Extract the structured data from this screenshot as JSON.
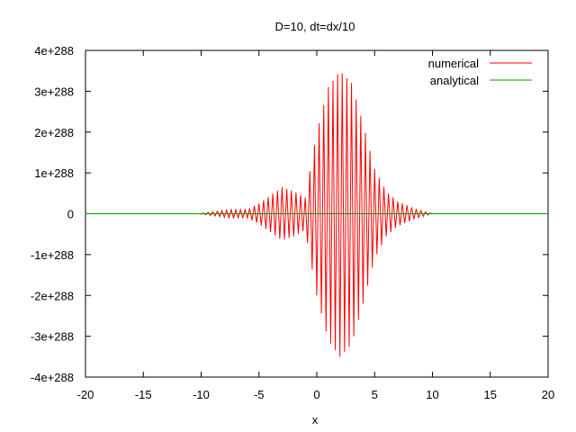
{
  "chart_data": {
    "type": "line",
    "title": "D=10, dt=dx/10",
    "xlabel": "x",
    "ylabel": "",
    "xlim": [
      -20,
      20
    ],
    "ylim": [
      -4e+288,
      4e+288
    ],
    "xticks": [
      -20,
      -15,
      -10,
      -5,
      0,
      5,
      10,
      15,
      20
    ],
    "xtick_labels": [
      "-20",
      "-15",
      "-10",
      "-5",
      "0",
      "5",
      "10",
      "15",
      "20"
    ],
    "yticks": [
      -4e+288,
      -3e+288,
      -2e+288,
      -1e+288,
      0,
      1e+288,
      2e+288,
      3e+288,
      4e+288
    ],
    "ytick_labels": [
      "-4e+288",
      "-3e+288",
      "-2e+288",
      "-1e+288",
      "0",
      "1e+288",
      "2e+288",
      "3e+288",
      "4e+288"
    ],
    "grid": false,
    "legend_position": "top-right",
    "series": [
      {
        "name": "numerical",
        "color": "#ff0000",
        "kind": "oscillating-envelope",
        "x_range": [
          -10.2,
          10
        ],
        "oscillation_period": 0.4,
        "envelope_points": [
          {
            "x": -10.2,
            "amp": 0
          },
          {
            "x": -9.0,
            "amp": 5e+286
          },
          {
            "x": -7.5,
            "amp": 1e+287
          },
          {
            "x": -6.0,
            "amp": 1e+287
          },
          {
            "x": -5.0,
            "amp": 2.5e+287
          },
          {
            "x": -3.0,
            "amp": 6.5e+287
          },
          {
            "x": -2.0,
            "amp": 5.5e+287
          },
          {
            "x": -1.0,
            "amp": 4e+287
          },
          {
            "x": 0.0,
            "amp": 2e+288
          },
          {
            "x": 1.0,
            "amp": 3.1e+288
          },
          {
            "x": 2.0,
            "amp": 3.5e+288
          },
          {
            "x": 3.0,
            "amp": 3.2e+288
          },
          {
            "x": 4.0,
            "amp": 2.2e+288
          },
          {
            "x": 5.0,
            "amp": 1.1e+288
          },
          {
            "x": 6.0,
            "amp": 5.5e+287
          },
          {
            "x": 7.0,
            "amp": 3e+287
          },
          {
            "x": 8.5,
            "amp": 1.2e+287
          },
          {
            "x": 10.0,
            "amp": 0
          }
        ]
      },
      {
        "name": "analytical",
        "color": "#00a000",
        "x": [
          -20,
          20
        ],
        "values": [
          0,
          0
        ]
      }
    ]
  }
}
